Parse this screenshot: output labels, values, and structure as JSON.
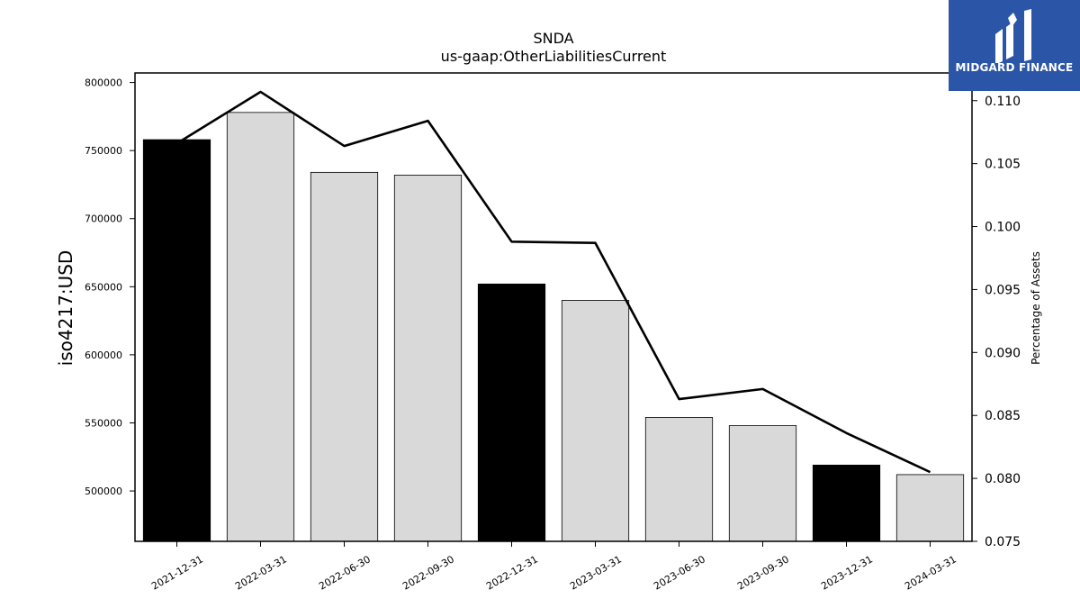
{
  "logo": {
    "text": "MIDGARD FINANCE",
    "bg_color": "#2b56a8"
  },
  "chart_data": {
    "type": "bar",
    "title": "SNDA",
    "subtitle": "us-gaap:OtherLiabilitiesCurrent",
    "ylabel": "iso4217:USD",
    "y2label": "Percentage of Assets",
    "categories": [
      "2021-12-31",
      "2022-03-31",
      "2022-06-30",
      "2022-09-30",
      "2022-12-31",
      "2023-03-31",
      "2023-06-30",
      "2023-09-30",
      "2023-12-31",
      "2024-03-31"
    ],
    "series": [
      {
        "type": "bar",
        "axis": "left",
        "values": [
          758000,
          778000,
          734000,
          732000,
          652000,
          640000,
          554000,
          548000,
          519000,
          512000
        ],
        "colors": [
          "#000000",
          "#d9d9d9",
          "#d9d9d9",
          "#d9d9d9",
          "#000000",
          "#d9d9d9",
          "#d9d9d9",
          "#d9d9d9",
          "#000000",
          "#d9d9d9"
        ]
      },
      {
        "type": "line",
        "axis": "right",
        "values": [
          0.1066,
          0.1107,
          0.1064,
          0.1084,
          0.0988,
          0.0987,
          0.0863,
          0.0871,
          0.0836,
          0.0805
        ],
        "color": "#000000"
      }
    ],
    "ylim": [
      463000,
      807000
    ],
    "y_ticks": [
      500000,
      550000,
      600000,
      650000,
      700000,
      750000,
      800000
    ],
    "y2lim": [
      0.075,
      0.1122
    ],
    "y2_ticks": [
      "0.075",
      "0.080",
      "0.085",
      "0.090",
      "0.095",
      "0.100",
      "0.105",
      "0.110"
    ],
    "grid": false,
    "legend": "none"
  }
}
